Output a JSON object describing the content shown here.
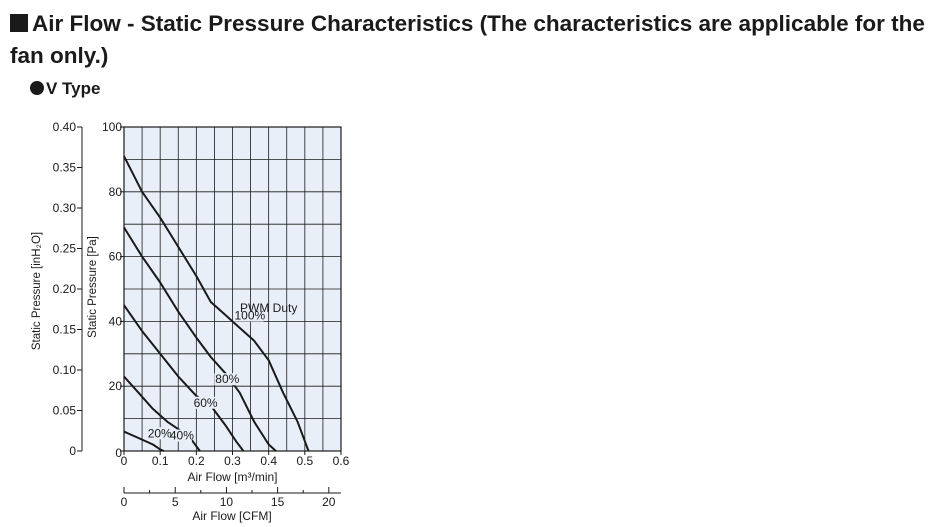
{
  "heading": {
    "title": "Air Flow - Static Pressure Characteristics (The characteristics are applicable for the fan only.)"
  },
  "subheading": {
    "label": "V Type"
  },
  "chart_data": {
    "type": "line",
    "title": "",
    "xlabel": "Air Flow [m³/min]",
    "ylabel": "Static Pressure [Pa]",
    "xlim": [
      0,
      0.6
    ],
    "ylim": [
      0,
      100
    ],
    "x_ticks": [
      0,
      0.1,
      0.2,
      0.3,
      0.4,
      0.5,
      0.6
    ],
    "x_tick_labels": [
      "0",
      "0.1",
      "0.2",
      "0.3",
      "0.4",
      "0.5",
      "0.6"
    ],
    "y_ticks": [
      0,
      20,
      40,
      60,
      80,
      100
    ],
    "y_tick_labels": [
      "0",
      "20",
      "40",
      "60",
      "80",
      "100"
    ],
    "grid": true,
    "secondary_y": {
      "label": "Static Pressure [inH₂O]",
      "lim": [
        0,
        0.4
      ],
      "ticks": [
        0,
        0.05,
        0.1,
        0.15,
        0.2,
        0.25,
        0.3,
        0.35,
        0.4
      ],
      "tick_labels": [
        "0",
        "0.05",
        "0.10",
        "0.15",
        "0.20",
        "0.25",
        "0.30",
        "0.35",
        "0.40"
      ]
    },
    "secondary_x": {
      "label": "Air Flow [CFM]",
      "lim": [
        0,
        21.19
      ],
      "ticks": [
        0,
        5,
        10,
        15,
        20
      ],
      "tick_labels": [
        "0",
        "5",
        "10",
        "15",
        "20"
      ]
    },
    "legend_title": "PWM Duty",
    "series": [
      {
        "name": "100%",
        "points": [
          [
            0,
            91
          ],
          [
            0.05,
            80
          ],
          [
            0.1,
            72
          ],
          [
            0.15,
            63
          ],
          [
            0.2,
            54
          ],
          [
            0.24,
            46
          ],
          [
            0.28,
            42
          ],
          [
            0.32,
            38
          ],
          [
            0.36,
            34
          ],
          [
            0.4,
            28
          ],
          [
            0.44,
            18
          ],
          [
            0.48,
            9
          ],
          [
            0.51,
            0
          ]
        ]
      },
      {
        "name": "80%",
        "points": [
          [
            0,
            69
          ],
          [
            0.05,
            60
          ],
          [
            0.1,
            52
          ],
          [
            0.15,
            43
          ],
          [
            0.2,
            35
          ],
          [
            0.24,
            29
          ],
          [
            0.28,
            24
          ],
          [
            0.32,
            18
          ],
          [
            0.36,
            9
          ],
          [
            0.4,
            2
          ],
          [
            0.42,
            0
          ]
        ]
      },
      {
        "name": "60%",
        "points": [
          [
            0,
            45
          ],
          [
            0.05,
            37
          ],
          [
            0.1,
            30
          ],
          [
            0.15,
            23
          ],
          [
            0.2,
            17
          ],
          [
            0.24,
            14
          ],
          [
            0.28,
            8
          ],
          [
            0.31,
            3
          ],
          [
            0.33,
            0
          ]
        ]
      },
      {
        "name": "40%",
        "points": [
          [
            0,
            23
          ],
          [
            0.04,
            18
          ],
          [
            0.08,
            13
          ],
          [
            0.12,
            9
          ],
          [
            0.16,
            6
          ],
          [
            0.19,
            3
          ],
          [
            0.21,
            0
          ]
        ]
      },
      {
        "name": "20%",
        "points": [
          [
            0,
            6
          ],
          [
            0.04,
            4
          ],
          [
            0.08,
            2
          ],
          [
            0.1,
            0.5
          ],
          [
            0.11,
            0
          ]
        ]
      }
    ]
  }
}
